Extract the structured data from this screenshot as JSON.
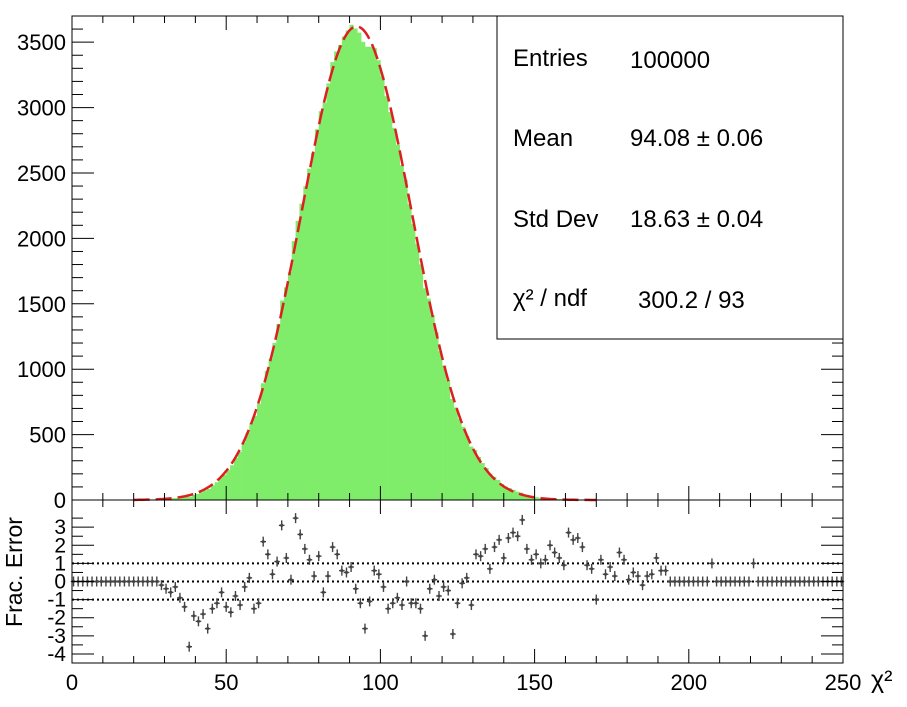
{
  "chart_data": [
    {
      "type": "bar",
      "role": "histogram-with-fit",
      "xlim": [
        0,
        250
      ],
      "ylim": [
        0,
        3700
      ],
      "x_ticks": [
        0,
        50,
        100,
        150,
        200,
        250
      ],
      "y_ticks": [
        0,
        500,
        1000,
        1500,
        2000,
        2500,
        3000,
        3500
      ],
      "xlabel": "χ²",
      "bin_width": 1.25,
      "fill_color": "#7fec6a",
      "fit": {
        "type": "gaussian",
        "amplitude": 3620,
        "mean": 92.3,
        "sigma": 17.9,
        "color": "#dd1f1f",
        "style": "dashed"
      },
      "stats": [
        {
          "label": "Entries",
          "value": "100000"
        },
        {
          "label": "Mean",
          "value": "94.08 ± 0.06"
        },
        {
          "label": "Std Dev",
          "value": "18.63 ± 0.04"
        },
        {
          "label": "χ² / ndf",
          "value": "300.2 / 93"
        }
      ]
    },
    {
      "type": "scatter",
      "role": "residuals",
      "ylabel": "Frac. Error",
      "xlim": [
        0,
        250
      ],
      "ylim": [
        -4.5,
        4.5
      ],
      "y_ticks": [
        -4,
        -3,
        -2,
        -1,
        0,
        1,
        2,
        3
      ],
      "reference_lines": [
        -1,
        0,
        1
      ],
      "marker_color": "#444444",
      "points": [
        [
          0.5,
          0
        ],
        [
          2,
          0
        ],
        [
          3.5,
          0
        ],
        [
          5,
          0
        ],
        [
          6.5,
          0
        ],
        [
          8,
          0
        ],
        [
          9.5,
          0
        ],
        [
          11,
          0
        ],
        [
          12.5,
          0
        ],
        [
          14,
          0
        ],
        [
          15.5,
          0
        ],
        [
          17,
          0
        ],
        [
          18.5,
          0
        ],
        [
          20,
          0
        ],
        [
          21.5,
          0
        ],
        [
          23,
          0
        ],
        [
          24.5,
          0
        ],
        [
          26,
          0
        ],
        [
          27.5,
          0
        ],
        [
          29,
          -0.2
        ],
        [
          30.5,
          -0.4
        ],
        [
          32,
          -0.6
        ],
        [
          33.5,
          -0.3
        ],
        [
          35,
          -0.9
        ],
        [
          36.5,
          -1.4
        ],
        [
          38,
          -3.6
        ],
        [
          39.5,
          -1.9
        ],
        [
          41,
          -2.2
        ],
        [
          42.5,
          -1.8
        ],
        [
          44,
          -2.6
        ],
        [
          45.5,
          -1.5
        ],
        [
          47,
          -1.2
        ],
        [
          48.5,
          -0.6
        ],
        [
          50,
          -1.4
        ],
        [
          51.5,
          -1.7
        ],
        [
          53,
          -0.8
        ],
        [
          54.5,
          -1.3
        ],
        [
          56,
          -0.3
        ],
        [
          57.5,
          0.2
        ],
        [
          59,
          -1.5
        ],
        [
          60.5,
          -1.2
        ],
        [
          62,
          2.2
        ],
        [
          63.5,
          1.5
        ],
        [
          65,
          0.4
        ],
        [
          66.5,
          1.1
        ],
        [
          68,
          3.1
        ],
        [
          69.5,
          1.3
        ],
        [
          71,
          0.1
        ],
        [
          72.5,
          3.5
        ],
        [
          74,
          2.6
        ],
        [
          75.5,
          1.8
        ],
        [
          77,
          1.2
        ],
        [
          78.5,
          0.3
        ],
        [
          80,
          1.4
        ],
        [
          81.5,
          -0.6
        ],
        [
          83,
          0.3
        ],
        [
          84.5,
          1.9
        ],
        [
          86,
          1.5
        ],
        [
          87.5,
          0.6
        ],
        [
          89,
          0.5
        ],
        [
          90.5,
          0.8
        ],
        [
          92,
          -0.4
        ],
        [
          93.5,
          -1.2
        ],
        [
          95,
          -2.6
        ],
        [
          96.5,
          -1.1
        ],
        [
          98,
          0.6
        ],
        [
          99.5,
          0.4
        ],
        [
          101,
          -0.3
        ],
        [
          102.5,
          -1.5
        ],
        [
          104,
          -1.2
        ],
        [
          105.5,
          -0.9
        ],
        [
          107,
          -1.3
        ],
        [
          108.5,
          0
        ],
        [
          110,
          -1.2
        ],
        [
          111.5,
          -1.2
        ],
        [
          113,
          -1.5
        ],
        [
          114.5,
          -3
        ],
        [
          116,
          -0.4
        ],
        [
          117.5,
          0.1
        ],
        [
          119,
          -0.8
        ],
        [
          120.5,
          -0.3
        ],
        [
          122,
          -0.5
        ],
        [
          123.5,
          -2.9
        ],
        [
          125,
          -1.2
        ],
        [
          126.5,
          -0.1
        ],
        [
          128,
          0.2
        ],
        [
          129.5,
          -1.3
        ],
        [
          131,
          1.5
        ],
        [
          132.5,
          1.4
        ],
        [
          134,
          1.8
        ],
        [
          135.5,
          0.7
        ],
        [
          137,
          1.9
        ],
        [
          138.5,
          2.3
        ],
        [
          140,
          1.3
        ],
        [
          141.5,
          2.4
        ],
        [
          143,
          2.7
        ],
        [
          144.5,
          2.5
        ],
        [
          146,
          3.4
        ],
        [
          147.5,
          1.8
        ],
        [
          149,
          1.2
        ],
        [
          150.5,
          1.5
        ],
        [
          152,
          1
        ],
        [
          153.5,
          1.2
        ],
        [
          155,
          2
        ],
        [
          156.5,
          1.6
        ],
        [
          158,
          1.3
        ],
        [
          159.5,
          0.9
        ],
        [
          161,
          2.7
        ],
        [
          162.5,
          2.3
        ],
        [
          164,
          2.4
        ],
        [
          165.5,
          1.9
        ],
        [
          167,
          0.9
        ],
        [
          168.5,
          0.7
        ],
        [
          170,
          -1
        ],
        [
          171.5,
          1.2
        ],
        [
          173,
          0.4
        ],
        [
          174.5,
          0.8
        ],
        [
          176,
          0.3
        ],
        [
          177.5,
          1.6
        ],
        [
          179,
          1.2
        ],
        [
          180.5,
          0.1
        ],
        [
          182,
          0.5
        ],
        [
          183.5,
          0.3
        ],
        [
          185,
          -0.2
        ],
        [
          186.5,
          0.3
        ],
        [
          188,
          0.4
        ],
        [
          189.5,
          1.3
        ],
        [
          191,
          0.6
        ],
        [
          192.5,
          0.6
        ],
        [
          194,
          0
        ],
        [
          195.5,
          0
        ],
        [
          197,
          0
        ],
        [
          198.5,
          0
        ],
        [
          200,
          0
        ],
        [
          201.5,
          0
        ],
        [
          203,
          0
        ],
        [
          204.5,
          0
        ],
        [
          206,
          0
        ],
        [
          207.5,
          1
        ],
        [
          209,
          0
        ],
        [
          210.5,
          0
        ],
        [
          212,
          0
        ],
        [
          213.5,
          0
        ],
        [
          215,
          0
        ],
        [
          216.5,
          0
        ],
        [
          218,
          0
        ],
        [
          219.5,
          0
        ],
        [
          221,
          1
        ],
        [
          222.5,
          0
        ],
        [
          224,
          0
        ],
        [
          225.5,
          0
        ],
        [
          227,
          0
        ],
        [
          228.5,
          0
        ],
        [
          230,
          0
        ],
        [
          231.5,
          0
        ],
        [
          233,
          0
        ],
        [
          234.5,
          0
        ],
        [
          236,
          0
        ],
        [
          237.5,
          0
        ],
        [
          239,
          0
        ],
        [
          240.5,
          0
        ],
        [
          242,
          0
        ],
        [
          243.5,
          0
        ],
        [
          245,
          0
        ],
        [
          246.5,
          0
        ],
        [
          248,
          0
        ],
        [
          249.5,
          0
        ]
      ]
    }
  ]
}
